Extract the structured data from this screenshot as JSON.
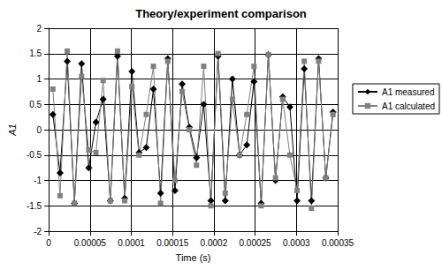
{
  "chart_data": {
    "type": "line",
    "title": "Theory/experiment comparison",
    "x_label": "Time (s)",
    "y_label": "A1",
    "x": [
      5e-06,
      1.37e-05,
      2.24e-05,
      3.11e-05,
      3.98e-05,
      4.85e-05,
      5.72e-05,
      6.59e-05,
      7.46e-05,
      8.33e-05,
      9.2e-05,
      0.0001007,
      0.0001094,
      0.0001181,
      0.0001268,
      0.0001355,
      0.0001442,
      0.0001529,
      0.0001616,
      0.0001703,
      0.000179,
      0.0001877,
      0.0001964,
      0.0002051,
      0.0002138,
      0.0002225,
      0.0002312,
      0.0002399,
      0.0002486,
      0.0002573,
      0.000266,
      0.0002747,
      0.0002834,
      0.0002921,
      0.0003008,
      0.0003095,
      0.0003182,
      0.0003269,
      0.0003356,
      0.0003443
    ],
    "series": [
      {
        "name": "A1 measured",
        "color": "#000000",
        "marker": "diamond",
        "line_style": "solid",
        "values": [
          0.3,
          -0.85,
          1.35,
          -1.45,
          1.3,
          -0.75,
          0.15,
          0.6,
          -1.4,
          1.45,
          -1.35,
          1.15,
          -0.45,
          -0.35,
          0.8,
          -1.25,
          1.4,
          -1.2,
          0.9,
          0.05,
          -0.55,
          0.5,
          -1.4,
          1.45,
          -1.4,
          1.0,
          -0.5,
          -0.3,
          0.95,
          -1.45,
          1.48,
          -1.0,
          0.65,
          0.45,
          -1.4,
          1.2,
          -1.4,
          1.4,
          -0.95,
          0.35
        ]
      },
      {
        "name": "A1 calculated",
        "color": "#808080",
        "marker": "square",
        "line_style": "solid",
        "values": [
          0.8,
          -1.3,
          1.55,
          -1.45,
          1.05,
          -0.4,
          -0.45,
          0.97,
          -1.4,
          1.55,
          -1.4,
          0.85,
          -0.5,
          0.3,
          1.25,
          -1.45,
          1.35,
          -1.0,
          0.75,
          0.0,
          -0.7,
          1.25,
          -1.5,
          1.5,
          -1.25,
          0.6,
          -0.5,
          0.3,
          1.25,
          -1.5,
          1.48,
          -0.95,
          0.6,
          -0.5,
          -1.2,
          1.35,
          -1.55,
          1.35,
          -0.95,
          0.3
        ]
      }
    ],
    "xlim": [
      0,
      0.00035
    ],
    "xticks": [
      0,
      5e-05,
      0.0001,
      0.00015,
      0.0002,
      0.00025,
      0.0003,
      0.00035
    ],
    "ylim": [
      -2,
      2
    ],
    "yticks": [
      -2,
      -1.5,
      -1,
      -0.5,
      0,
      0.5,
      1,
      1.5,
      2
    ],
    "grid": true,
    "legend": "right"
  }
}
